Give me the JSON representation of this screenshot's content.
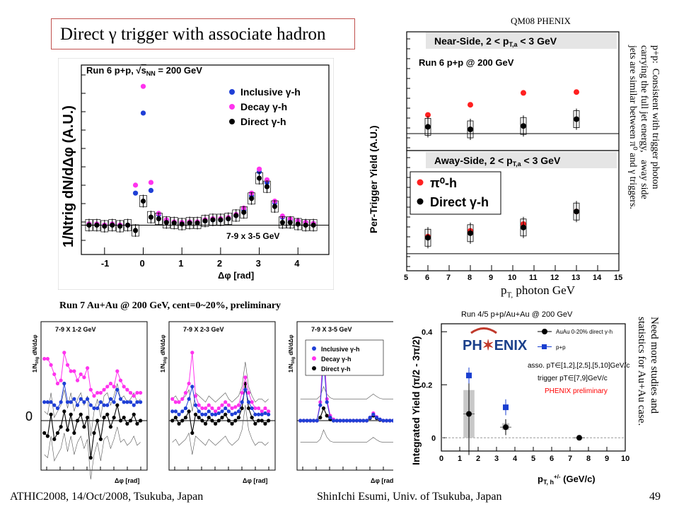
{
  "slide": {
    "title_prefix": "Direct ",
    "title_symbol": "γ",
    "title_suffix": " trigger with associate hadron",
    "conference_tag": "QM08 PHENIX",
    "page_number": "49",
    "footer_left": "ATHIC2008, 14/Oct/2008, Tsukuba, Japan",
    "footer_center": "ShinIchi Esumi, Univ. of Tsukuba, Japan"
  },
  "notes": {
    "pp_lines": [
      "p+p:  Consistent with trigger photon",
      "carrying the full jet energy,   away side",
      "jets are similar between π⁰ and γ triggers."
    ],
    "auau_lines": [
      "Need more studies and",
      "statistics for Au+Au case."
    ]
  },
  "colors": {
    "inclusive": "#1f3fd6",
    "decay": "#ff33ee",
    "direct": "#000000",
    "pi0": "#ff2020",
    "auau": "#000000",
    "pp": "#1a3fd0",
    "prelim": "#ff0000",
    "title_border": "#c0504d"
  },
  "chart_data": [
    {
      "type": "scatter",
      "id": "pp-correlation",
      "header_prefix": "Run 6 p+p, ",
      "header_sqrt": "s",
      "header_sub": "NN",
      "header_suffix": " = 200 GeV",
      "ylabel": "1/Ntrig dN/dΔφ (A.U.)",
      "xlabel": "Δφ [rad]",
      "bin_label": "7-9 x 3-5 GeV",
      "xlim": [
        -1.6,
        4.8
      ],
      "ylim": [
        -0.55,
        3.0
      ],
      "xticks": [
        -1,
        0,
        1,
        2,
        3,
        4
      ],
      "legend": [
        "Inclusive γ-h",
        "Decay γ-h",
        "Direct γ-h"
      ],
      "series": [
        {
          "name": "Inclusive γ-h",
          "x": [
            -1.4,
            -1.2,
            -1.0,
            -0.8,
            -0.6,
            -0.4,
            -0.2,
            0.0,
            0.2,
            0.4,
            0.6,
            0.8,
            1.0,
            1.2,
            1.4,
            1.6,
            1.8,
            2.0,
            2.2,
            2.4,
            2.6,
            2.8,
            3.0,
            3.2,
            3.4,
            3.6,
            3.8,
            4.0,
            4.2,
            4.4
          ],
          "y": [
            0.02,
            0.02,
            0.0,
            0.02,
            0.0,
            0.0,
            0.6,
            2.1,
            0.65,
            0.2,
            0.08,
            0.05,
            0.04,
            0.05,
            0.05,
            0.08,
            0.1,
            0.1,
            0.12,
            0.18,
            0.28,
            0.55,
            1.0,
            0.8,
            0.42,
            0.15,
            0.1,
            0.08,
            0.05,
            0.03
          ]
        },
        {
          "name": "Decay γ-h",
          "x": [
            -1.4,
            -1.2,
            -1.0,
            -0.8,
            -0.6,
            -0.4,
            -0.2,
            0.0,
            0.2,
            0.4,
            0.6,
            0.8,
            1.0,
            1.2,
            1.4,
            1.6,
            1.8,
            2.0,
            2.2,
            2.4,
            2.6,
            2.8,
            3.0,
            3.2,
            3.4,
            3.6,
            3.8,
            4.0,
            4.2,
            4.4
          ],
          "y": [
            0.02,
            0.02,
            0.0,
            0.02,
            0.0,
            0.0,
            0.75,
            2.6,
            0.8,
            0.22,
            0.1,
            0.06,
            0.05,
            0.06,
            0.06,
            0.1,
            0.12,
            0.12,
            0.14,
            0.2,
            0.32,
            0.6,
            1.05,
            0.85,
            0.45,
            0.17,
            0.12,
            0.08,
            0.05,
            0.03
          ]
        },
        {
          "name": "Direct γ-h",
          "x": [
            -1.4,
            -1.2,
            -1.0,
            -0.8,
            -0.6,
            -0.4,
            -0.2,
            0.0,
            0.2,
            0.4,
            0.6,
            0.8,
            1.0,
            1.2,
            1.4,
            1.6,
            1.8,
            2.0,
            2.2,
            2.4,
            2.6,
            2.8,
            3.0,
            3.2,
            3.4,
            3.6,
            3.8,
            4.0,
            4.2,
            4.4
          ],
          "y": [
            0.0,
            0.0,
            -0.02,
            0.0,
            -0.02,
            0.0,
            -0.1,
            0.45,
            0.15,
            0.12,
            0.05,
            0.04,
            0.02,
            0.04,
            0.04,
            0.08,
            0.1,
            0.1,
            0.12,
            0.18,
            0.24,
            0.5,
            0.88,
            0.72,
            0.35,
            0.05,
            0.05,
            0.02,
            0.0,
            0.0
          ]
        }
      ]
    },
    {
      "type": "scatter",
      "id": "per-trigger-yield",
      "run_label": "Run 6 p+p @ 200 GeV",
      "ylabel": "Per-Trigger Yield (A.U.)",
      "xlabel_main": "p",
      "xlabel_sub": "T,",
      "xlabel_suffix": " photon GeV",
      "xlim": [
        5,
        15
      ],
      "xticks": [
        5,
        6,
        7,
        8,
        9,
        10,
        11,
        12,
        13,
        14,
        15
      ],
      "near_title": "Near-Side, 2 < p_T,a < 3 GeV",
      "away_title": "Away-Side, 2 < p_T,a < 3 GeV",
      "near_title_text": "Near-Side, 2 < p",
      "away_title_text": "Away-Side, 2 < p",
      "title_sub": "T,a",
      "title_end": " < 3 GeV",
      "legend": [
        "π⁰-h",
        "Direct γ-h"
      ],
      "near_side": {
        "ylim": [
          -0.2,
          1.0
        ],
        "series": [
          {
            "name": "π⁰-h",
            "x": [
              6.0,
              8.0,
              10.5,
              13.0
            ],
            "y": [
              0.22,
              0.34,
              0.48,
              0.49
            ]
          },
          {
            "name": "Direct γ-h",
            "x": [
              6.0,
              8.0,
              10.5,
              13.0
            ],
            "y": [
              0.08,
              0.05,
              0.09,
              0.17
            ]
          }
        ]
      },
      "away_side": {
        "ylim": [
          -0.15,
          0.75
        ],
        "series": [
          {
            "name": "π⁰-h",
            "x": [
              6.0,
              8.0,
              10.5,
              13.0
            ],
            "y": [
              0.15,
              0.2,
              0.26,
              0.37
            ]
          },
          {
            "name": "Direct γ-h",
            "x": [
              6.0,
              8.0,
              10.5,
              13.0
            ],
            "y": [
              0.14,
              0.18,
              0.23,
              0.37
            ]
          }
        ]
      }
    },
    {
      "type": "line",
      "id": "auau-correlations",
      "header": "Run 7 Au+Au @ 200 GeV, cent=0~20%, preliminary",
      "ylabel": "1/N_trig dN/dΔφ",
      "ylabel_main": "1/N",
      "ylabel_sub": "trig",
      "ylabel_end": " dN/dΔφ",
      "xlabel": "Δφ [rad]",
      "zero_label": "0",
      "legend": [
        "Inclusive γ-h",
        "Decay γ-h",
        "Direct γ-h"
      ],
      "panels": [
        {
          "label": "7-9 X 1-2 GeV",
          "x": [
            -1.4,
            -1.2,
            -1.0,
            -0.8,
            -0.6,
            -0.4,
            -0.2,
            0.0,
            0.2,
            0.4,
            0.6,
            0.8,
            1.0,
            1.2,
            1.4,
            1.6,
            1.8,
            2.0,
            2.2,
            2.4,
            2.6,
            2.8,
            3.0,
            3.2,
            3.4,
            3.6,
            3.8,
            4.0,
            4.2,
            4.4
          ],
          "inclusive": [
            0.3,
            0.3,
            0.3,
            0.25,
            0.2,
            0.3,
            0.6,
            0.3,
            0.3,
            0.35,
            0.25,
            0.35,
            0.3,
            0.35,
            0.25,
            0.2,
            0.2,
            0.3,
            0.25,
            0.25,
            0.35,
            0.3,
            0.5,
            0.35,
            0.3,
            0.3,
            0.3,
            0.25,
            0.3,
            0.3
          ],
          "decay": [
            1.0,
            1.0,
            0.9,
            0.75,
            0.6,
            0.65,
            1.1,
            0.9,
            0.8,
            0.8,
            0.65,
            0.75,
            0.7,
            0.85,
            0.5,
            0.4,
            0.45,
            0.45,
            0.5,
            0.55,
            0.6,
            0.55,
            0.8,
            0.65,
            0.55,
            0.5,
            0.45,
            0.4,
            0.45,
            0.45
          ],
          "direct": [
            -0.2,
            -0.25,
            0.1,
            -0.3,
            -0.2,
            -0.1,
            0.15,
            -0.15,
            0.1,
            -0.2,
            0.0,
            0.1,
            -0.1,
            0.05,
            -0.6,
            -0.2,
            0.0,
            -0.3,
            0.05,
            0.1,
            -0.1,
            0.05,
            0.25,
            0.0,
            0.05,
            -0.05,
            0.0,
            0.1,
            -0.05,
            0.0
          ]
        },
        {
          "label": "7-9 X 2-3 GeV",
          "x": [
            -1.4,
            -1.2,
            -1.0,
            -0.8,
            -0.6,
            -0.4,
            -0.2,
            0.0,
            0.2,
            0.4,
            0.6,
            0.8,
            1.0,
            1.2,
            1.4,
            1.6,
            1.8,
            2.0,
            2.2,
            2.4,
            2.6,
            2.8,
            3.0,
            3.2,
            3.4,
            3.6,
            3.8,
            4.0,
            4.2,
            4.4
          ],
          "inclusive": [
            0.15,
            0.15,
            0.1,
            0.15,
            0.2,
            0.35,
            0.55,
            0.25,
            0.15,
            0.1,
            0.1,
            0.15,
            0.1,
            0.1,
            0.12,
            0.15,
            0.2,
            0.15,
            0.1,
            0.12,
            0.15,
            0.3,
            0.5,
            0.3,
            0.2,
            0.1,
            0.1,
            0.1,
            0.12,
            0.1
          ],
          "decay": [
            0.35,
            0.3,
            0.3,
            0.35,
            0.45,
            0.6,
            1.1,
            0.4,
            0.25,
            0.2,
            0.2,
            0.25,
            0.2,
            0.15,
            0.2,
            0.25,
            0.3,
            0.25,
            0.2,
            0.22,
            0.25,
            0.45,
            0.7,
            0.45,
            0.3,
            0.2,
            0.2,
            0.15,
            0.2,
            0.15
          ],
          "direct": [
            0.0,
            0.05,
            -0.05,
            0.0,
            0.05,
            0.15,
            -0.2,
            0.1,
            0.05,
            0.0,
            -0.05,
            0.05,
            0.0,
            -0.05,
            0.0,
            0.05,
            0.1,
            0.0,
            -0.05,
            0.0,
            0.05,
            0.2,
            0.6,
            0.2,
            0.05,
            -0.05,
            0.0,
            0.0,
            -0.05,
            0.0
          ]
        },
        {
          "label": "7-9 X 3-5 GeV",
          "x": [
            -1.4,
            -1.2,
            -1.0,
            -0.8,
            -0.6,
            -0.4,
            -0.2,
            0.0,
            0.2,
            0.4,
            0.6,
            0.8,
            1.0,
            1.2,
            1.4,
            1.6,
            1.8,
            2.0,
            2.2,
            2.4,
            2.6,
            2.8,
            3.0,
            3.2,
            3.4,
            3.6,
            3.8,
            4.0,
            4.2,
            4.4
          ],
          "inclusive": [
            0.0,
            0.0,
            0.0,
            0.0,
            0.0,
            0.0,
            0.25,
            1.0,
            0.3,
            0.05,
            0.0,
            0.0,
            0.0,
            0.0,
            0.0,
            0.0,
            0.0,
            0.0,
            0.0,
            0.0,
            0.0,
            0.05,
            0.1,
            0.05,
            0.02,
            0.0,
            0.0,
            0.0,
            0.0,
            0.0
          ],
          "decay": [
            0.0,
            0.0,
            0.0,
            0.0,
            0.0,
            0.0,
            0.3,
            1.25,
            0.35,
            0.08,
            0.02,
            0.0,
            0.0,
            0.0,
            0.0,
            0.0,
            0.0,
            0.0,
            0.0,
            0.0,
            0.0,
            0.05,
            0.12,
            0.06,
            0.02,
            0.0,
            0.0,
            0.0,
            0.0,
            0.0
          ],
          "direct": [
            0.0,
            0.0,
            0.0,
            0.0,
            0.0,
            0.0,
            0.05,
            0.2,
            0.08,
            0.02,
            0.0,
            0.0,
            0.0,
            0.0,
            0.0,
            0.0,
            0.0,
            0.0,
            0.0,
            0.0,
            0.0,
            0.04,
            0.08,
            0.04,
            0.01,
            0.0,
            0.0,
            0.0,
            0.0,
            0.0
          ]
        }
      ]
    },
    {
      "type": "scatter",
      "id": "integrated-yield",
      "run_label": "Run 4/5 p+p/Au+Au @ 200 GeV",
      "ylabel": "Integrated Yield (π/2 - 3π/2)",
      "xlabel": "p_T,h+/- (GeV/c)",
      "xlabel_main": "p",
      "xlabel_sub": "T, h",
      "xlabel_sup": "+/-",
      "xlabel_end": " (GeV/c)",
      "logo": "PHENIX",
      "logo_left": "PH",
      "logo_right": "ENIX",
      "legend": [
        "AuAu 0-20% direct γ-h",
        "p+p"
      ],
      "assoc_text": "asso. pT∈[1,2],[2,5],[5,10]GeV/c",
      "trigger_text": "trigger pT∈[7,9]GeV/c",
      "prelim_text": "PHENIX preliminary",
      "xlim": [
        0,
        10
      ],
      "ylim": [
        -0.05,
        0.43
      ],
      "xticks": [
        0,
        1,
        2,
        3,
        4,
        5,
        6,
        7,
        8,
        9,
        10
      ],
      "yticks": [
        0,
        0.2,
        0.4
      ],
      "series": [
        {
          "name": "AuAu 0-20% direct γ-h",
          "x": [
            1.5,
            3.5,
            7.5
          ],
          "y": [
            0.09,
            0.04,
            0.0
          ]
        },
        {
          "name": "p+p",
          "x": [
            1.5,
            3.5
          ],
          "y": [
            0.235,
            0.115
          ]
        }
      ]
    }
  ]
}
